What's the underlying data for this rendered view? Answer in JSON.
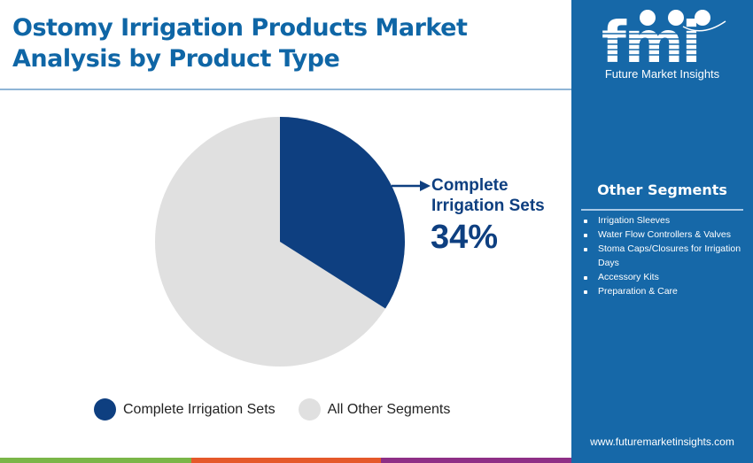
{
  "title": {
    "line1": "Ostomy Irrigation Products Market",
    "line2": "Analysis by Product Type"
  },
  "colors": {
    "primary": "#0e3f80",
    "other": "#e0e0e0",
    "title": "#0f66a6",
    "sidebar": "#1668a8",
    "bar_green": "#7ab648",
    "bar_orange": "#e5582a",
    "bar_purple": "#8e2f86"
  },
  "callout": {
    "label_line1": "Complete",
    "label_line2": "Irrigation Sets",
    "value": "34%"
  },
  "legend": {
    "items": [
      {
        "label": "Complete Irrigation Sets",
        "color": "#0e3f80"
      },
      {
        "label": "All Other Segments",
        "color": "#e0e0e0"
      }
    ]
  },
  "sidebar": {
    "logo_text": "fmi",
    "logo_subtitle": "Future Market Insights",
    "segments_title": "Other Segments",
    "segments": [
      "Irrigation Sleeves",
      "Water Flow Controllers & Valves",
      "Stoma Caps/Closures for Irrigation Days",
      "Accessory Kits",
      "Preparation & Care"
    ],
    "url": "www.futuremarketinsights.com"
  },
  "chart_data": {
    "type": "pie",
    "title": "Ostomy Irrigation Products Market Analysis by Product Type",
    "categories": [
      "Complete Irrigation Sets",
      "All Other Segments"
    ],
    "values": [
      34,
      66
    ],
    "unit": "%",
    "annotations": [
      {
        "target": "Complete Irrigation Sets",
        "text": "Complete Irrigation Sets 34%"
      }
    ],
    "legend_position": "bottom",
    "colors": [
      "#0e3f80",
      "#e0e0e0"
    ]
  }
}
